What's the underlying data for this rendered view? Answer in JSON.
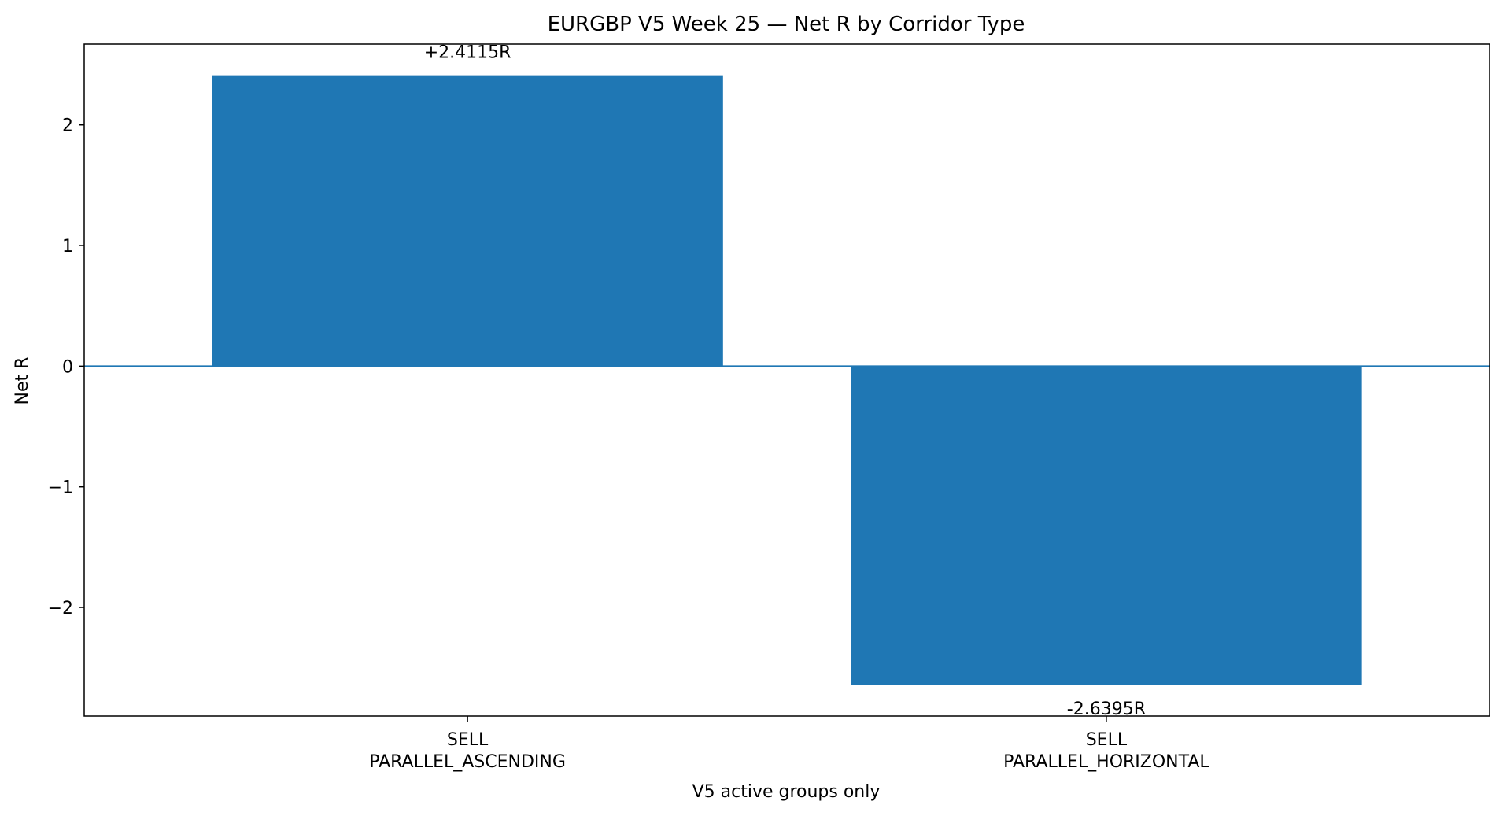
{
  "chart_data": {
    "type": "bar",
    "title": "EURGBP V5 Week 25 — Net R by Corridor Type",
    "xlabel": "V5 active groups only",
    "ylabel": "Net R",
    "categories": [
      [
        "SELL",
        "PARALLEL_ASCENDING"
      ],
      [
        "SELL",
        "PARALLEL_HORIZONTAL"
      ]
    ],
    "values": [
      2.4115,
      -2.6395
    ],
    "data_labels": [
      "+2.4115R",
      "-2.6395R"
    ],
    "ylim": [
      -2.9,
      2.67
    ],
    "yticks": [
      2,
      1,
      0,
      -1,
      -2
    ],
    "ytick_labels": [
      "2",
      "1",
      "0",
      "−1",
      "−2"
    ],
    "bar_color": "#1f77b4",
    "zero_line_color": "#1f77b4",
    "grid": false
  }
}
